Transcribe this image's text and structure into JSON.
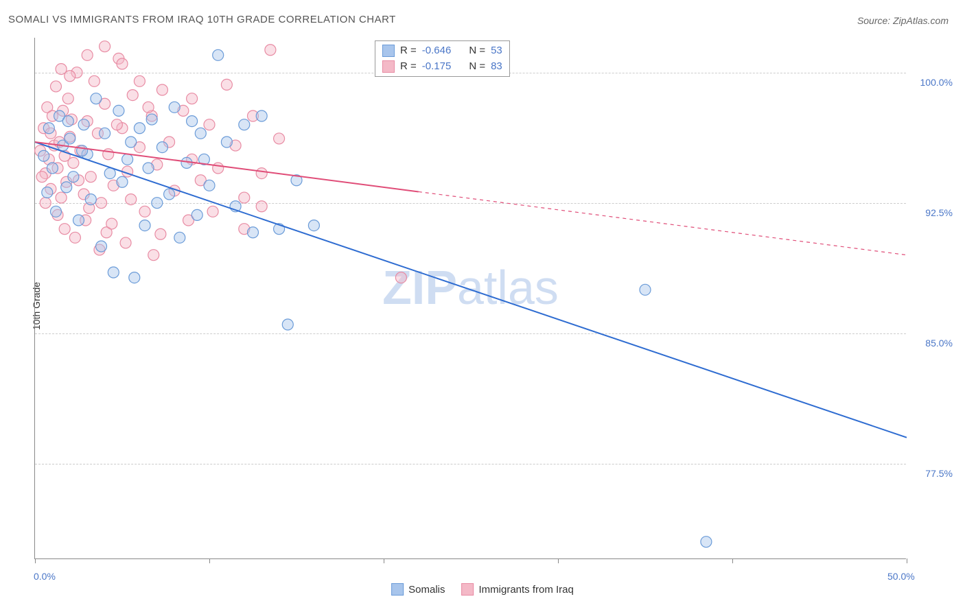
{
  "title": "SOMALI VS IMMIGRANTS FROM IRAQ 10TH GRADE CORRELATION CHART",
  "source": "Source: ZipAtlas.com",
  "y_axis_label": "10th Grade",
  "watermark_bold": "ZIP",
  "watermark_light": "atlas",
  "chart": {
    "type": "scatter",
    "xlim": [
      0,
      50
    ],
    "ylim": [
      72,
      102
    ],
    "x_ticks": [
      0,
      10,
      20,
      30,
      40,
      50
    ],
    "y_ticks_labeled": [
      {
        "v": 77.5,
        "label": "77.5%"
      },
      {
        "v": 85.0,
        "label": "85.0%"
      },
      {
        "v": 92.5,
        "label": "92.5%"
      },
      {
        "v": 100.0,
        "label": "100.0%"
      }
    ],
    "x_tick_labels": [
      {
        "v": 0,
        "label": "0.0%"
      },
      {
        "v": 50,
        "label": "50.0%"
      }
    ],
    "background_color": "#ffffff",
    "grid_color": "#cccccc",
    "grid_dash": "4 4",
    "axis_color": "#888888",
    "tick_label_color": "#4a76c7",
    "marker_radius": 8,
    "marker_fill_opacity": 0.45,
    "marker_stroke_width": 1.2,
    "trend_line_width": 2,
    "trend_dash": "5 5"
  },
  "series": [
    {
      "key": "somalis",
      "label": "Somalis",
      "color_fill": "#a8c5ec",
      "color_stroke": "#6a9bd8",
      "line_color": "#2e6cd1",
      "R": "-0.646",
      "N": "53",
      "trend": {
        "x0": 0,
        "y0": 96.0,
        "x1": 50,
        "y1": 79.0,
        "solid_until_x": 50
      },
      "points": [
        [
          0.5,
          95.2
        ],
        [
          0.7,
          93.1
        ],
        [
          0.8,
          96.8
        ],
        [
          1.0,
          94.5
        ],
        [
          1.2,
          92.0
        ],
        [
          1.4,
          97.5
        ],
        [
          1.6,
          95.8
        ],
        [
          1.8,
          93.4
        ],
        [
          2.0,
          96.2
        ],
        [
          2.2,
          94.0
        ],
        [
          2.5,
          91.5
        ],
        [
          2.8,
          97.0
        ],
        [
          3.0,
          95.3
        ],
        [
          3.2,
          92.7
        ],
        [
          3.5,
          98.5
        ],
        [
          3.8,
          90.0
        ],
        [
          4.0,
          96.5
        ],
        [
          4.3,
          94.2
        ],
        [
          4.5,
          88.5
        ],
        [
          4.8,
          97.8
        ],
        [
          5.0,
          93.7
        ],
        [
          5.3,
          95.0
        ],
        [
          5.7,
          88.2
        ],
        [
          6.0,
          96.8
        ],
        [
          6.3,
          91.2
        ],
        [
          6.7,
          97.3
        ],
        [
          7.0,
          92.5
        ],
        [
          7.3,
          95.7
        ],
        [
          7.7,
          93.0
        ],
        [
          8.0,
          98.0
        ],
        [
          8.3,
          90.5
        ],
        [
          8.7,
          94.8
        ],
        [
          9.0,
          97.2
        ],
        [
          9.3,
          91.8
        ],
        [
          9.7,
          95.0
        ],
        [
          10.0,
          93.5
        ],
        [
          10.5,
          101.0
        ],
        [
          11.0,
          96.0
        ],
        [
          11.5,
          92.3
        ],
        [
          12.5,
          90.8
        ],
        [
          13.0,
          97.5
        ],
        [
          14.0,
          91.0
        ],
        [
          14.5,
          85.5
        ],
        [
          15.0,
          93.8
        ],
        [
          16.0,
          91.2
        ],
        [
          12.0,
          97.0
        ],
        [
          9.5,
          96.5
        ],
        [
          6.5,
          94.5
        ],
        [
          5.5,
          96.0
        ],
        [
          2.7,
          95.5
        ],
        [
          35.0,
          87.5
        ],
        [
          38.5,
          73.0
        ],
        [
          1.9,
          97.2
        ]
      ]
    },
    {
      "key": "iraq",
      "label": "Immigrants from Iraq",
      "color_fill": "#f4b9c7",
      "color_stroke": "#e88ba3",
      "line_color": "#e04d78",
      "R": "-0.175",
      "N": "83",
      "trend": {
        "x0": 0,
        "y0": 96.0,
        "x1": 50,
        "y1": 89.5,
        "solid_until_x": 22
      },
      "points": [
        [
          0.3,
          95.5
        ],
        [
          0.5,
          96.8
        ],
        [
          0.6,
          94.2
        ],
        [
          0.7,
          98.0
        ],
        [
          0.8,
          95.0
        ],
        [
          0.9,
          93.3
        ],
        [
          1.0,
          97.5
        ],
        [
          1.1,
          95.8
        ],
        [
          1.2,
          99.2
        ],
        [
          1.3,
          94.5
        ],
        [
          1.4,
          96.0
        ],
        [
          1.5,
          92.8
        ],
        [
          1.6,
          97.8
        ],
        [
          1.7,
          95.2
        ],
        [
          1.8,
          93.7
        ],
        [
          1.9,
          98.5
        ],
        [
          2.0,
          96.3
        ],
        [
          2.2,
          94.8
        ],
        [
          2.4,
          100.0
        ],
        [
          2.6,
          95.5
        ],
        [
          2.8,
          93.0
        ],
        [
          3.0,
          97.2
        ],
        [
          3.2,
          94.0
        ],
        [
          3.4,
          99.5
        ],
        [
          3.6,
          96.5
        ],
        [
          3.8,
          92.5
        ],
        [
          4.0,
          98.2
        ],
        [
          4.2,
          95.3
        ],
        [
          4.5,
          93.5
        ],
        [
          4.8,
          100.8
        ],
        [
          5.0,
          96.8
        ],
        [
          5.3,
          94.3
        ],
        [
          5.6,
          98.7
        ],
        [
          6.0,
          95.7
        ],
        [
          6.3,
          92.0
        ],
        [
          6.7,
          97.5
        ],
        [
          7.0,
          94.7
        ],
        [
          7.3,
          99.0
        ],
        [
          7.7,
          96.0
        ],
        [
          8.0,
          93.2
        ],
        [
          8.5,
          97.8
        ],
        [
          9.0,
          95.0
        ],
        [
          4.0,
          101.5
        ],
        [
          5.0,
          100.5
        ],
        [
          2.0,
          99.8
        ],
        [
          3.0,
          101.0
        ],
        [
          1.5,
          100.2
        ],
        [
          6.0,
          99.5
        ],
        [
          9.5,
          93.8
        ],
        [
          10.0,
          97.0
        ],
        [
          10.5,
          94.5
        ],
        [
          11.0,
          99.3
        ],
        [
          11.5,
          95.8
        ],
        [
          12.0,
          92.8
        ],
        [
          12.5,
          97.5
        ],
        [
          13.0,
          94.2
        ],
        [
          13.5,
          101.3
        ],
        [
          14.0,
          96.2
        ],
        [
          2.3,
          90.5
        ],
        [
          3.7,
          89.8
        ],
        [
          5.2,
          90.2
        ],
        [
          6.8,
          89.5
        ],
        [
          1.7,
          91.0
        ],
        [
          4.1,
          90.8
        ],
        [
          2.9,
          91.5
        ],
        [
          0.4,
          94.0
        ],
        [
          0.6,
          92.5
        ],
        [
          1.3,
          91.8
        ],
        [
          2.5,
          93.8
        ],
        [
          3.1,
          92.2
        ],
        [
          4.4,
          91.3
        ],
        [
          5.5,
          92.7
        ],
        [
          7.2,
          90.7
        ],
        [
          8.8,
          91.5
        ],
        [
          10.2,
          92.0
        ],
        [
          12.0,
          91.0
        ],
        [
          13.0,
          92.3
        ],
        [
          9.0,
          98.5
        ],
        [
          6.5,
          98.0
        ],
        [
          4.7,
          97.0
        ],
        [
          2.1,
          97.3
        ],
        [
          0.9,
          96.5
        ],
        [
          21.0,
          88.2
        ]
      ]
    }
  ],
  "stats_box": {
    "R_label": "R =",
    "N_label": "N ="
  },
  "legend": {
    "series1": "Somalis",
    "series2": "Immigrants from Iraq"
  }
}
